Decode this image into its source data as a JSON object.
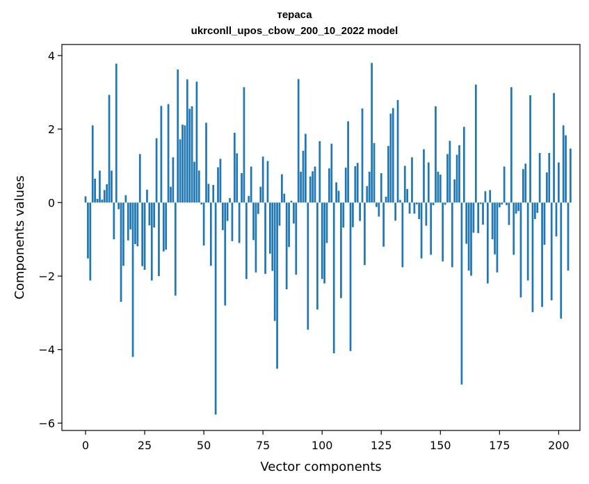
{
  "chart_data": {
    "type": "bar",
    "title_line1": "тераса",
    "title_line2": "ukrconll_upos_cbow_200_10_2022 model",
    "xlabel": "Vector components",
    "ylabel": "Components values",
    "xlim": [
      -10,
      209
    ],
    "ylim": [
      -6.2,
      4.3
    ],
    "xticks": [
      0,
      25,
      50,
      75,
      100,
      125,
      150,
      175,
      200
    ],
    "yticks": [
      -6,
      -4,
      -2,
      0,
      2,
      4
    ],
    "ytick_labels": [
      "−6",
      "−4",
      "−2",
      "0",
      "2",
      "4"
    ],
    "bar_color": "#1f77b4",
    "grid": false,
    "values": [
      0.17,
      -1.52,
      -2.12,
      2.1,
      0.65,
      0.1,
      0.87,
      0.08,
      0.34,
      0.5,
      2.93,
      0.87,
      -1.0,
      3.78,
      -0.18,
      -2.7,
      -1.72,
      0.2,
      -1.03,
      -0.73,
      -4.2,
      -1.13,
      -1.19,
      1.32,
      -1.73,
      -1.83,
      0.35,
      -0.62,
      -2.12,
      -0.68,
      1.75,
      -2.0,
      2.63,
      -1.33,
      -1.28,
      2.68,
      0.43,
      1.23,
      -2.53,
      3.62,
      1.72,
      2.12,
      2.1,
      3.35,
      2.55,
      2.62,
      1.11,
      3.29,
      0.87,
      -0.05,
      -1.17,
      2.17,
      0.51,
      -1.72,
      0.48,
      -5.77,
      0.96,
      1.19,
      -0.75,
      -2.8,
      -0.5,
      0.12,
      -1.05,
      1.9,
      1.34,
      -1.1,
      0.8,
      3.14,
      -2.08,
      0.18,
      0.98,
      -1.02,
      -1.9,
      -0.31,
      0.43,
      1.25,
      -1.94,
      1.13,
      -1.39,
      -1.86,
      -3.22,
      -4.52,
      -0.63,
      0.77,
      0.24,
      -2.36,
      -1.21,
      0.05,
      -0.57,
      -1.96,
      3.36,
      0.84,
      1.41,
      1.87,
      -3.46,
      0.71,
      0.85,
      0.98,
      -2.91,
      1.67,
      -2.08,
      -2.2,
      -1.1,
      0.93,
      1.6,
      -4.1,
      0.55,
      0.32,
      -2.6,
      -0.68,
      0.95,
      2.21,
      -4.04,
      -0.67,
      0.99,
      1.08,
      -0.5,
      2.56,
      -1.7,
      0.45,
      0.84,
      3.8,
      1.62,
      -0.12,
      -0.38,
      0.8,
      -1.2,
      0.16,
      1.54,
      2.42,
      2.57,
      -0.49,
      2.79,
      0.07,
      -1.76,
      1.0,
      0.37,
      -0.3,
      1.23,
      -0.3,
      -0.05,
      -0.45,
      -1.52,
      1.45,
      -0.63,
      1.09,
      -1.42,
      -0.07,
      2.62,
      0.84,
      0.76,
      -1.6,
      -0.06,
      1.32,
      1.68,
      -1.76,
      0.63,
      1.3,
      1.56,
      -4.95,
      2.06,
      -1.12,
      -1.85,
      -1.99,
      -0.82,
      3.21,
      -0.83,
      -0.04,
      -0.6,
      0.31,
      -2.2,
      0.34,
      -1.0,
      -1.41,
      -1.9,
      -0.13,
      -0.05,
      0.98,
      -0.07,
      -0.61,
      3.14,
      -1.42,
      -0.3,
      -0.23,
      -2.58,
      0.91,
      1.06,
      -2.12,
      2.92,
      -2.98,
      -0.45,
      -0.28,
      1.35,
      -2.84,
      -1.15,
      0.82,
      1.35,
      -2.66,
      2.98,
      -0.92,
      1.09,
      -3.16,
      2.1,
      1.83,
      -1.85,
      1.47
    ]
  }
}
